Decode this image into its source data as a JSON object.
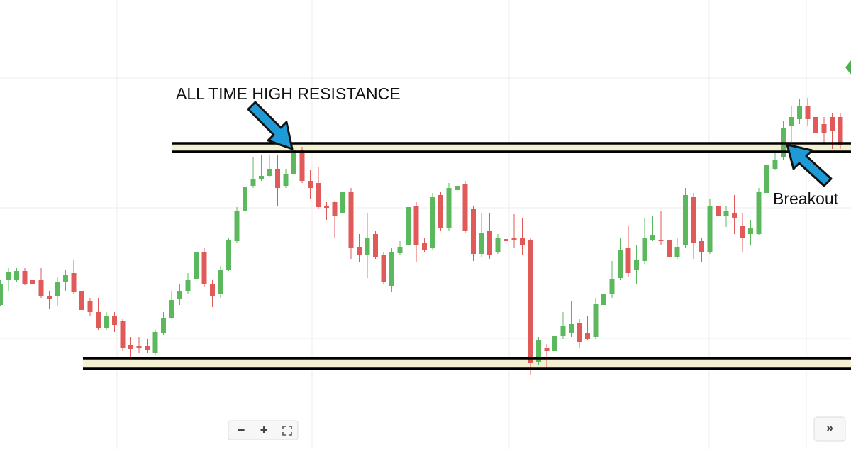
{
  "chart_data": {
    "type": "candlestick",
    "ylim": [
      0,
      633
    ],
    "y_grid": [
      156,
      340,
      523
    ],
    "up_color": "#5cb85c",
    "down_color": "#e05a5a",
    "open": [
      203,
      238,
      238,
      251,
      238,
      238,
      215,
      215,
      236,
      248,
      223,
      208,
      193,
      171,
      188,
      181,
      146,
      145,
      145,
      135,
      163,
      185,
      211,
      223,
      240,
      278,
      233,
      218,
      253,
      293,
      335,
      371,
      381,
      385,
      395,
      371,
      388,
      421,
      378,
      375,
      343,
      348,
      333,
      363,
      285,
      273,
      303,
      273,
      230,
      276,
      288,
      343,
      291,
      283,
      358,
      311,
      365,
      373,
      338,
      275,
      308,
      278,
      296,
      298,
      298,
      295,
      123,
      143,
      138,
      160,
      163,
      178,
      163,
      158,
      203,
      218,
      241,
      283,
      253,
      265,
      295,
      295,
      295,
      271,
      288,
      355,
      293,
      278,
      343,
      328,
      333,
      315,
      303,
      303,
      361,
      395,
      411,
      455,
      465,
      483,
      468,
      458,
      468,
      468
    ],
    "high": [
      238,
      255,
      255,
      255,
      241,
      255,
      223,
      243,
      253,
      266,
      228,
      213,
      213,
      193,
      193,
      183,
      158,
      158,
      155,
      168,
      193,
      223,
      233,
      248,
      293,
      283,
      238,
      258,
      298,
      341,
      375,
      411,
      415,
      415,
      415,
      395,
      428,
      426,
      393,
      398,
      348,
      350,
      368,
      368,
      303,
      333,
      308,
      278,
      283,
      293,
      348,
      348,
      298,
      361,
      363,
      375,
      378,
      378,
      343,
      333,
      333,
      303,
      303,
      331,
      325,
      298,
      158,
      148,
      193,
      193,
      208,
      183,
      188,
      213,
      225,
      265,
      298,
      315,
      288,
      325,
      328,
      335,
      308,
      298,
      368,
      361,
      298,
      353,
      361,
      343,
      358,
      333,
      323,
      368,
      408,
      418,
      463,
      483,
      493,
      495,
      473,
      468,
      473,
      473
    ],
    "low": [
      201,
      223,
      235,
      231,
      223,
      213,
      198,
      201,
      223,
      218,
      193,
      188,
      168,
      168,
      165,
      138,
      128,
      136,
      135,
      133,
      161,
      183,
      203,
      218,
      238,
      228,
      200,
      213,
      251,
      291,
      333,
      368,
      378,
      383,
      343,
      368,
      385,
      375,
      353,
      338,
      323,
      298,
      328,
      268,
      263,
      241,
      268,
      233,
      221,
      273,
      283,
      263,
      278,
      281,
      308,
      308,
      363,
      305,
      265,
      271,
      268,
      275,
      288,
      283,
      273,
      105,
      118,
      113,
      133,
      155,
      158,
      143,
      153,
      155,
      201,
      213,
      238,
      243,
      233,
      261,
      293,
      288,
      261,
      268,
      283,
      268,
      263,
      275,
      318,
      313,
      303,
      278,
      288,
      301,
      358,
      393,
      408,
      433,
      458,
      455,
      441,
      428,
      423,
      423
    ],
    "close": [
      233,
      250,
      251,
      233,
      233,
      215,
      211,
      236,
      245,
      221,
      196,
      193,
      171,
      188,
      175,
      143,
      141,
      143,
      140,
      165,
      185,
      210,
      223,
      238,
      278,
      233,
      215,
      253,
      295,
      336,
      370,
      380,
      385,
      395,
      368,
      388,
      421,
      378,
      368,
      341,
      340,
      328,
      363,
      283,
      273,
      298,
      271,
      236,
      278,
      285,
      341,
      288,
      281,
      355,
      311,
      368,
      371,
      308,
      275,
      305,
      273,
      298,
      293,
      295,
      288,
      121,
      153,
      138,
      160,
      173,
      176,
      151,
      155,
      205,
      218,
      240,
      281,
      248,
      266,
      298,
      301,
      293,
      271,
      285,
      358,
      291,
      278,
      343,
      328,
      335,
      325,
      298,
      311,
      363,
      401,
      408,
      453,
      468,
      483,
      465,
      445,
      445,
      448,
      428
    ],
    "zones": [
      {
        "low": 419,
        "high": 431
      },
      {
        "low": 113,
        "high": 128
      }
    ],
    "annotations": [
      "ALL TIME HIGH RESISTANCE",
      "Breakout"
    ],
    "toolbar": {
      "zoom_out": "−",
      "zoom_in": "+",
      "scroll": "»"
    }
  }
}
